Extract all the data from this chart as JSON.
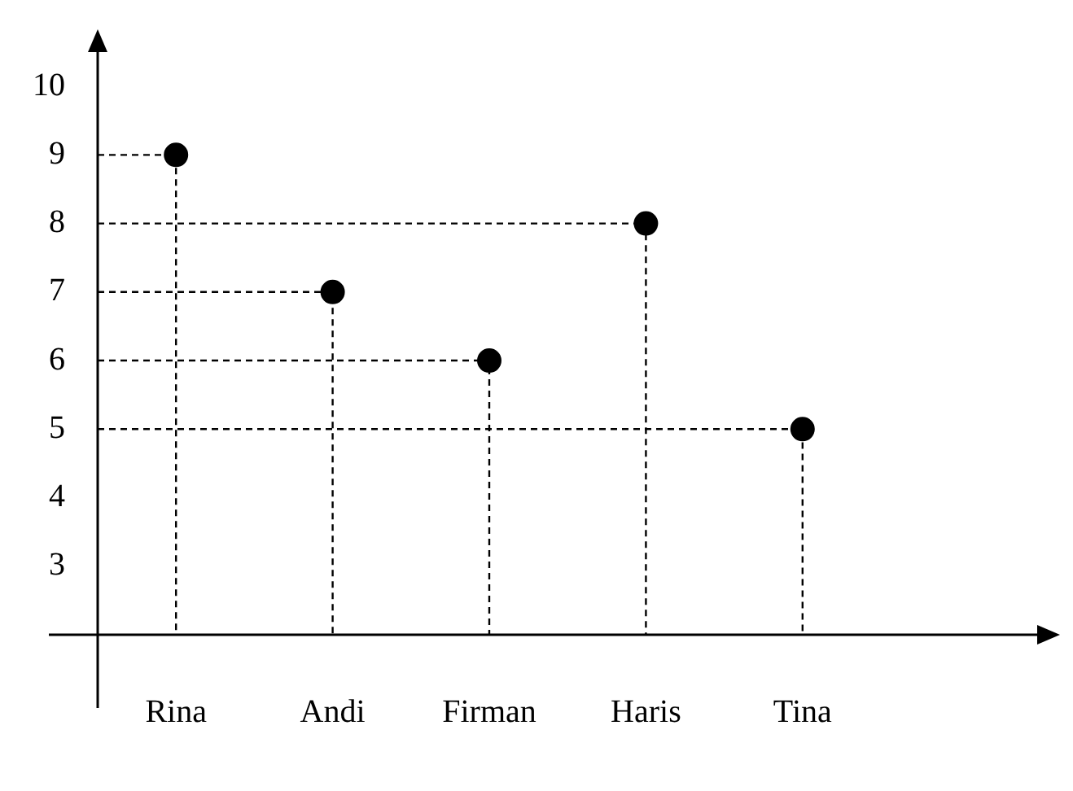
{
  "chart_data": {
    "type": "scatter",
    "categories": [
      "Rina",
      "Andi",
      "Firman",
      "Haris",
      "Tina"
    ],
    "values": [
      9,
      7,
      6,
      8,
      5
    ],
    "color": "#000000",
    "ylim": [
      2,
      10.5
    ],
    "yticks": [
      3,
      4,
      5,
      6,
      7,
      8,
      9,
      10
    ],
    "grid": false,
    "legend": false,
    "marker": "circle"
  }
}
